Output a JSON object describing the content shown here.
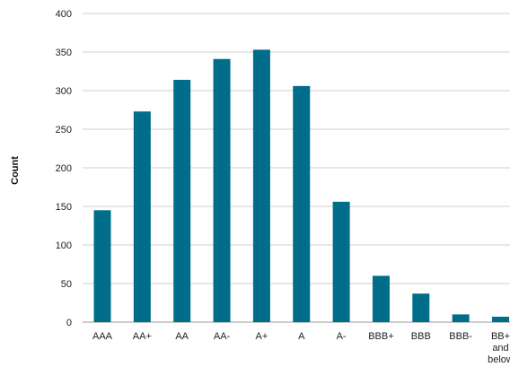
{
  "chart_data": {
    "type": "bar",
    "title": "",
    "xlabel": "",
    "ylabel": "Count",
    "ylim": [
      0,
      400
    ],
    "yticks": [
      0,
      50,
      100,
      150,
      200,
      250,
      300,
      350,
      400
    ],
    "grid": true,
    "bar_color": "#006e8a",
    "categories": [
      "AAA",
      "AA+",
      "AA",
      "AA-",
      "A+",
      "A",
      "A-",
      "BBB+",
      "BBB",
      "BBB-",
      "BB+ and below"
    ],
    "category_lines": [
      [
        "AAA"
      ],
      [
        "AA+"
      ],
      [
        "AA"
      ],
      [
        "AA-"
      ],
      [
        "A+"
      ],
      [
        "A"
      ],
      [
        "A-"
      ],
      [
        "BBB+"
      ],
      [
        "BBB"
      ],
      [
        "BBB-"
      ],
      [
        "BB+",
        "and",
        "below"
      ]
    ],
    "values": [
      145,
      273,
      314,
      341,
      353,
      306,
      156,
      60,
      37,
      10,
      7
    ]
  }
}
